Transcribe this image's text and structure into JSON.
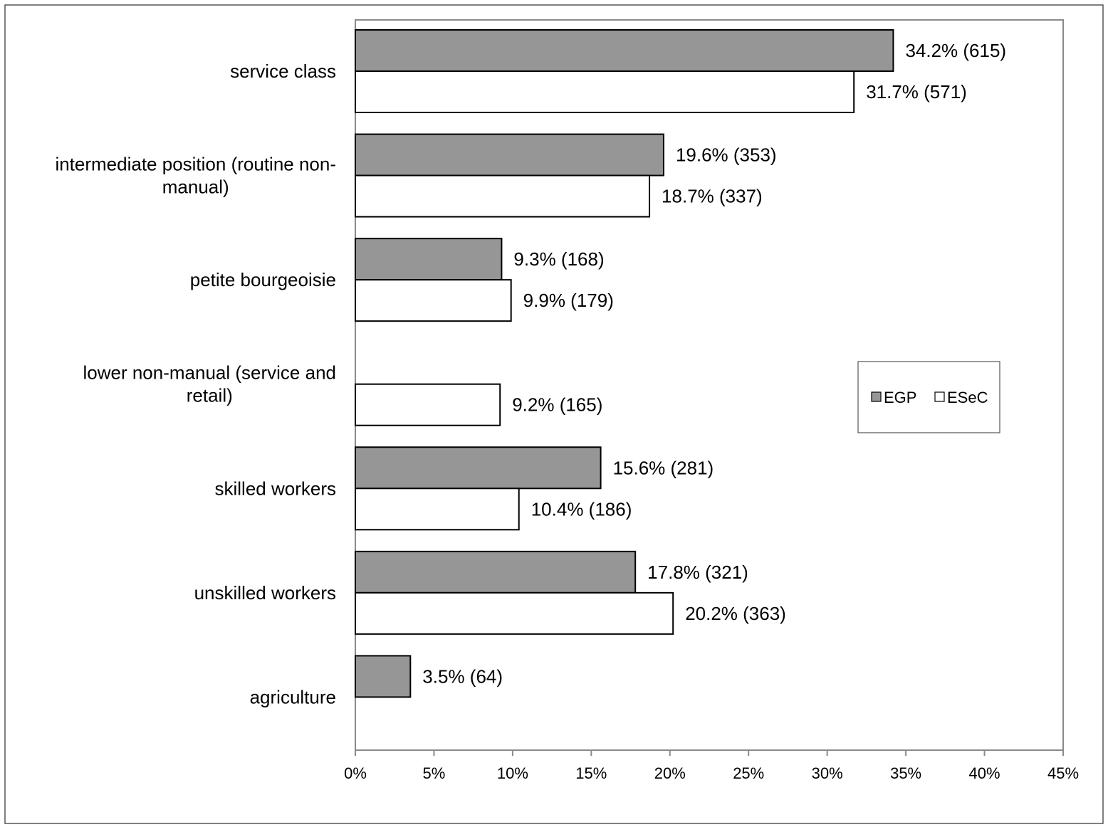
{
  "chart_data": {
    "type": "bar",
    "orientation": "horizontal",
    "categories": [
      "service class",
      "intermediate position (routine non-manual)",
      "petite bourgeoisie",
      "lower non-manual (service and retail)",
      "skilled workers",
      "unskilled workers",
      "agriculture"
    ],
    "category_label_lines": [
      [
        "service class"
      ],
      [
        "intermediate position (routine non-",
        "manual)"
      ],
      [
        "petite bourgeoisie"
      ],
      [
        "lower non-manual (service and",
        "retail)"
      ],
      [
        "skilled workers"
      ],
      [
        "unskilled workers"
      ],
      [
        "agriculture"
      ]
    ],
    "series": [
      {
        "name": "EGP",
        "color": "#969696",
        "values": [
          34.2,
          19.6,
          9.3,
          null,
          15.6,
          17.8,
          3.5
        ],
        "labels": [
          "34.2% (615)",
          "19.6% (353)",
          "9.3% (168)",
          null,
          "15.6% (281)",
          "17.8% (321)",
          "3.5% (64)"
        ]
      },
      {
        "name": "ESeC",
        "color": "#ffffff",
        "values": [
          31.7,
          18.7,
          9.9,
          9.2,
          10.4,
          20.2,
          null
        ],
        "labels": [
          "31.7% (571)",
          "18.7% (337)",
          "9.9% (179)",
          "9.2% (165)",
          "10.4% (186)",
          "20.2% (363)",
          null
        ]
      }
    ],
    "x_ticks": [
      "0%",
      "5%",
      "10%",
      "15%",
      "20%",
      "25%",
      "30%",
      "35%",
      "40%",
      "45%"
    ],
    "xlim": [
      0,
      45
    ],
    "title": "",
    "xlabel": "",
    "ylabel": "",
    "grid": false,
    "legend_position": "right"
  }
}
